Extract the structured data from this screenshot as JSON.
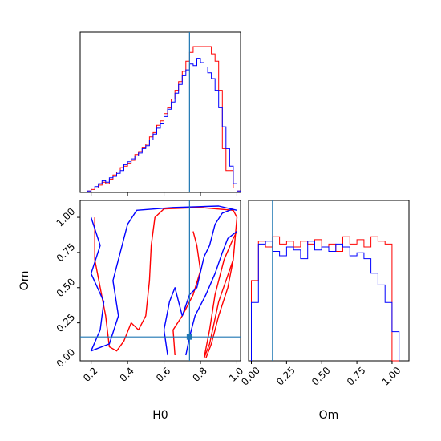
{
  "chart_data": [
    {
      "type": "histogram",
      "panel": "H0 marginal",
      "xlim": [
        0.14,
        1.02
      ],
      "truth": 0.74,
      "bins": [
        0.18,
        0.2,
        0.22,
        0.24,
        0.26,
        0.28,
        0.3,
        0.32,
        0.34,
        0.36,
        0.38,
        0.4,
        0.42,
        0.44,
        0.46,
        0.48,
        0.5,
        0.52,
        0.54,
        0.56,
        0.58,
        0.6,
        0.62,
        0.64,
        0.66,
        0.68,
        0.7,
        0.72,
        0.74,
        0.76,
        0.78,
        0.8,
        0.82,
        0.84,
        0.86,
        0.88,
        0.9,
        0.92,
        0.94,
        0.96,
        0.98,
        1.0,
        1.02
      ],
      "series": [
        {
          "color": "#ff0000",
          "values": [
            1,
            2,
            3,
            5,
            7,
            6,
            9,
            12,
            14,
            17,
            18,
            20,
            22,
            26,
            28,
            31,
            33,
            38,
            41,
            46,
            49,
            54,
            58,
            64,
            70,
            76,
            83,
            90,
            96,
            100,
            100,
            100,
            100,
            100,
            95,
            90,
            70,
            30,
            15,
            15,
            3,
            1
          ]
        },
        {
          "color": "#0000ff",
          "values": [
            1,
            3,
            4,
            6,
            8,
            7,
            10,
            11,
            13,
            15,
            19,
            21,
            23,
            25,
            27,
            30,
            32,
            36,
            40,
            44,
            47,
            52,
            57,
            62,
            68,
            74,
            80,
            84,
            88,
            87,
            92,
            89,
            86,
            82,
            78,
            70,
            58,
            45,
            30,
            18,
            6,
            1
          ]
        }
      ]
    },
    {
      "type": "contour",
      "panel": "H0 vs Om",
      "xlabel": "H0",
      "ylabel": "Om",
      "xlim": [
        0.14,
        1.02
      ],
      "ylim": [
        -0.02,
        1.12
      ],
      "xticks": [
        "0.2",
        "0.4",
        "0.6",
        "0.8",
        "1.0"
      ],
      "yticks": [
        "0.00",
        "0.25",
        "0.50",
        "0.75",
        "1.00"
      ],
      "truth": {
        "H0": 0.74,
        "Om": 0.15
      },
      "series": [
        {
          "color": "#ff0000",
          "contours": [
            [
              [
                0.22,
                1.0
              ],
              [
                0.22,
                0.7
              ],
              [
                0.25,
                0.5
              ],
              [
                0.28,
                0.3
              ],
              [
                0.3,
                0.08
              ],
              [
                0.34,
                0.05
              ],
              [
                0.38,
                0.12
              ],
              [
                0.42,
                0.25
              ],
              [
                0.46,
                0.2
              ],
              [
                0.5,
                0.3
              ],
              [
                0.52,
                0.55
              ],
              [
                0.53,
                0.8
              ],
              [
                0.55,
                1.0
              ],
              [
                0.6,
                1.06
              ],
              [
                0.8,
                1.07
              ],
              [
                0.98,
                1.05
              ],
              [
                1.0,
                1.0
              ],
              [
                0.98,
                0.7
              ],
              [
                0.9,
                0.4
              ],
              [
                0.85,
                0.1
              ],
              [
                0.82,
                0.0
              ]
            ],
            [
              [
                0.82,
                0.0
              ],
              [
                0.85,
                0.2
              ],
              [
                0.88,
                0.45
              ],
              [
                0.93,
                0.7
              ],
              [
                0.98,
                0.85
              ],
              [
                1.0,
                0.9
              ]
            ],
            [
              [
                0.66,
                0.02
              ],
              [
                0.65,
                0.2
              ],
              [
                0.7,
                0.3
              ],
              [
                0.76,
                0.45
              ],
              [
                0.8,
                0.62
              ],
              [
                0.78,
                0.8
              ],
              [
                0.76,
                0.9
              ]
            ],
            [
              [
                0.83,
                0.0
              ],
              [
                0.86,
                0.1
              ],
              [
                0.9,
                0.3
              ],
              [
                0.95,
                0.5
              ],
              [
                0.98,
                0.7
              ]
            ]
          ]
        },
        {
          "color": "#0000ff",
          "contours": [
            [
              [
                0.2,
                1.0
              ],
              [
                0.25,
                0.8
              ],
              [
                0.2,
                0.6
              ],
              [
                0.27,
                0.4
              ],
              [
                0.25,
                0.2
              ],
              [
                0.2,
                0.05
              ],
              [
                0.3,
                0.1
              ],
              [
                0.35,
                0.3
              ],
              [
                0.32,
                0.55
              ],
              [
                0.35,
                0.7
              ],
              [
                0.4,
                0.95
              ],
              [
                0.45,
                1.05
              ],
              [
                0.65,
                1.07
              ],
              [
                0.9,
                1.08
              ],
              [
                1.0,
                1.05
              ]
            ],
            [
              [
                0.62,
                0.02
              ],
              [
                0.6,
                0.2
              ],
              [
                0.63,
                0.4
              ],
              [
                0.66,
                0.5
              ],
              [
                0.7,
                0.3
              ],
              [
                0.74,
                0.45
              ],
              [
                0.78,
                0.5
              ],
              [
                0.82,
                0.72
              ],
              [
                0.85,
                0.8
              ],
              [
                0.88,
                0.95
              ],
              [
                0.92,
                1.03
              ],
              [
                0.98,
                1.06
              ]
            ],
            [
              [
                0.72,
                0.02
              ],
              [
                0.74,
                0.15
              ],
              [
                0.77,
                0.3
              ],
              [
                0.83,
                0.45
              ],
              [
                0.88,
                0.6
              ],
              [
                0.92,
                0.75
              ],
              [
                0.95,
                0.85
              ],
              [
                1.0,
                0.9
              ]
            ]
          ]
        }
      ]
    },
    {
      "type": "histogram",
      "panel": "Om marginal",
      "xlabel": "Om",
      "xlim": [
        -0.02,
        1.12
      ],
      "xticks": [
        "0.00",
        "0.25",
        "0.50",
        "0.75",
        "1.00"
      ],
      "truth": 0.15,
      "bins": [
        0.0,
        0.05,
        0.1,
        0.15,
        0.2,
        0.25,
        0.3,
        0.35,
        0.4,
        0.45,
        0.5,
        0.55,
        0.6,
        0.65,
        0.7,
        0.75,
        0.8,
        0.85,
        0.9,
        0.95,
        1.0,
        1.05
      ],
      "series": [
        {
          "color": "#ff0000",
          "values": [
            55,
            82,
            78,
            85,
            80,
            82,
            78,
            82,
            80,
            83,
            78,
            80,
            75,
            85,
            80,
            83,
            78,
            85,
            82,
            80,
            0
          ]
        },
        {
          "color": "#0000ff",
          "values": [
            40,
            80,
            82,
            75,
            72,
            78,
            76,
            70,
            82,
            76,
            78,
            75,
            80,
            78,
            72,
            74,
            70,
            60,
            52,
            40,
            20
          ]
        }
      ]
    }
  ]
}
